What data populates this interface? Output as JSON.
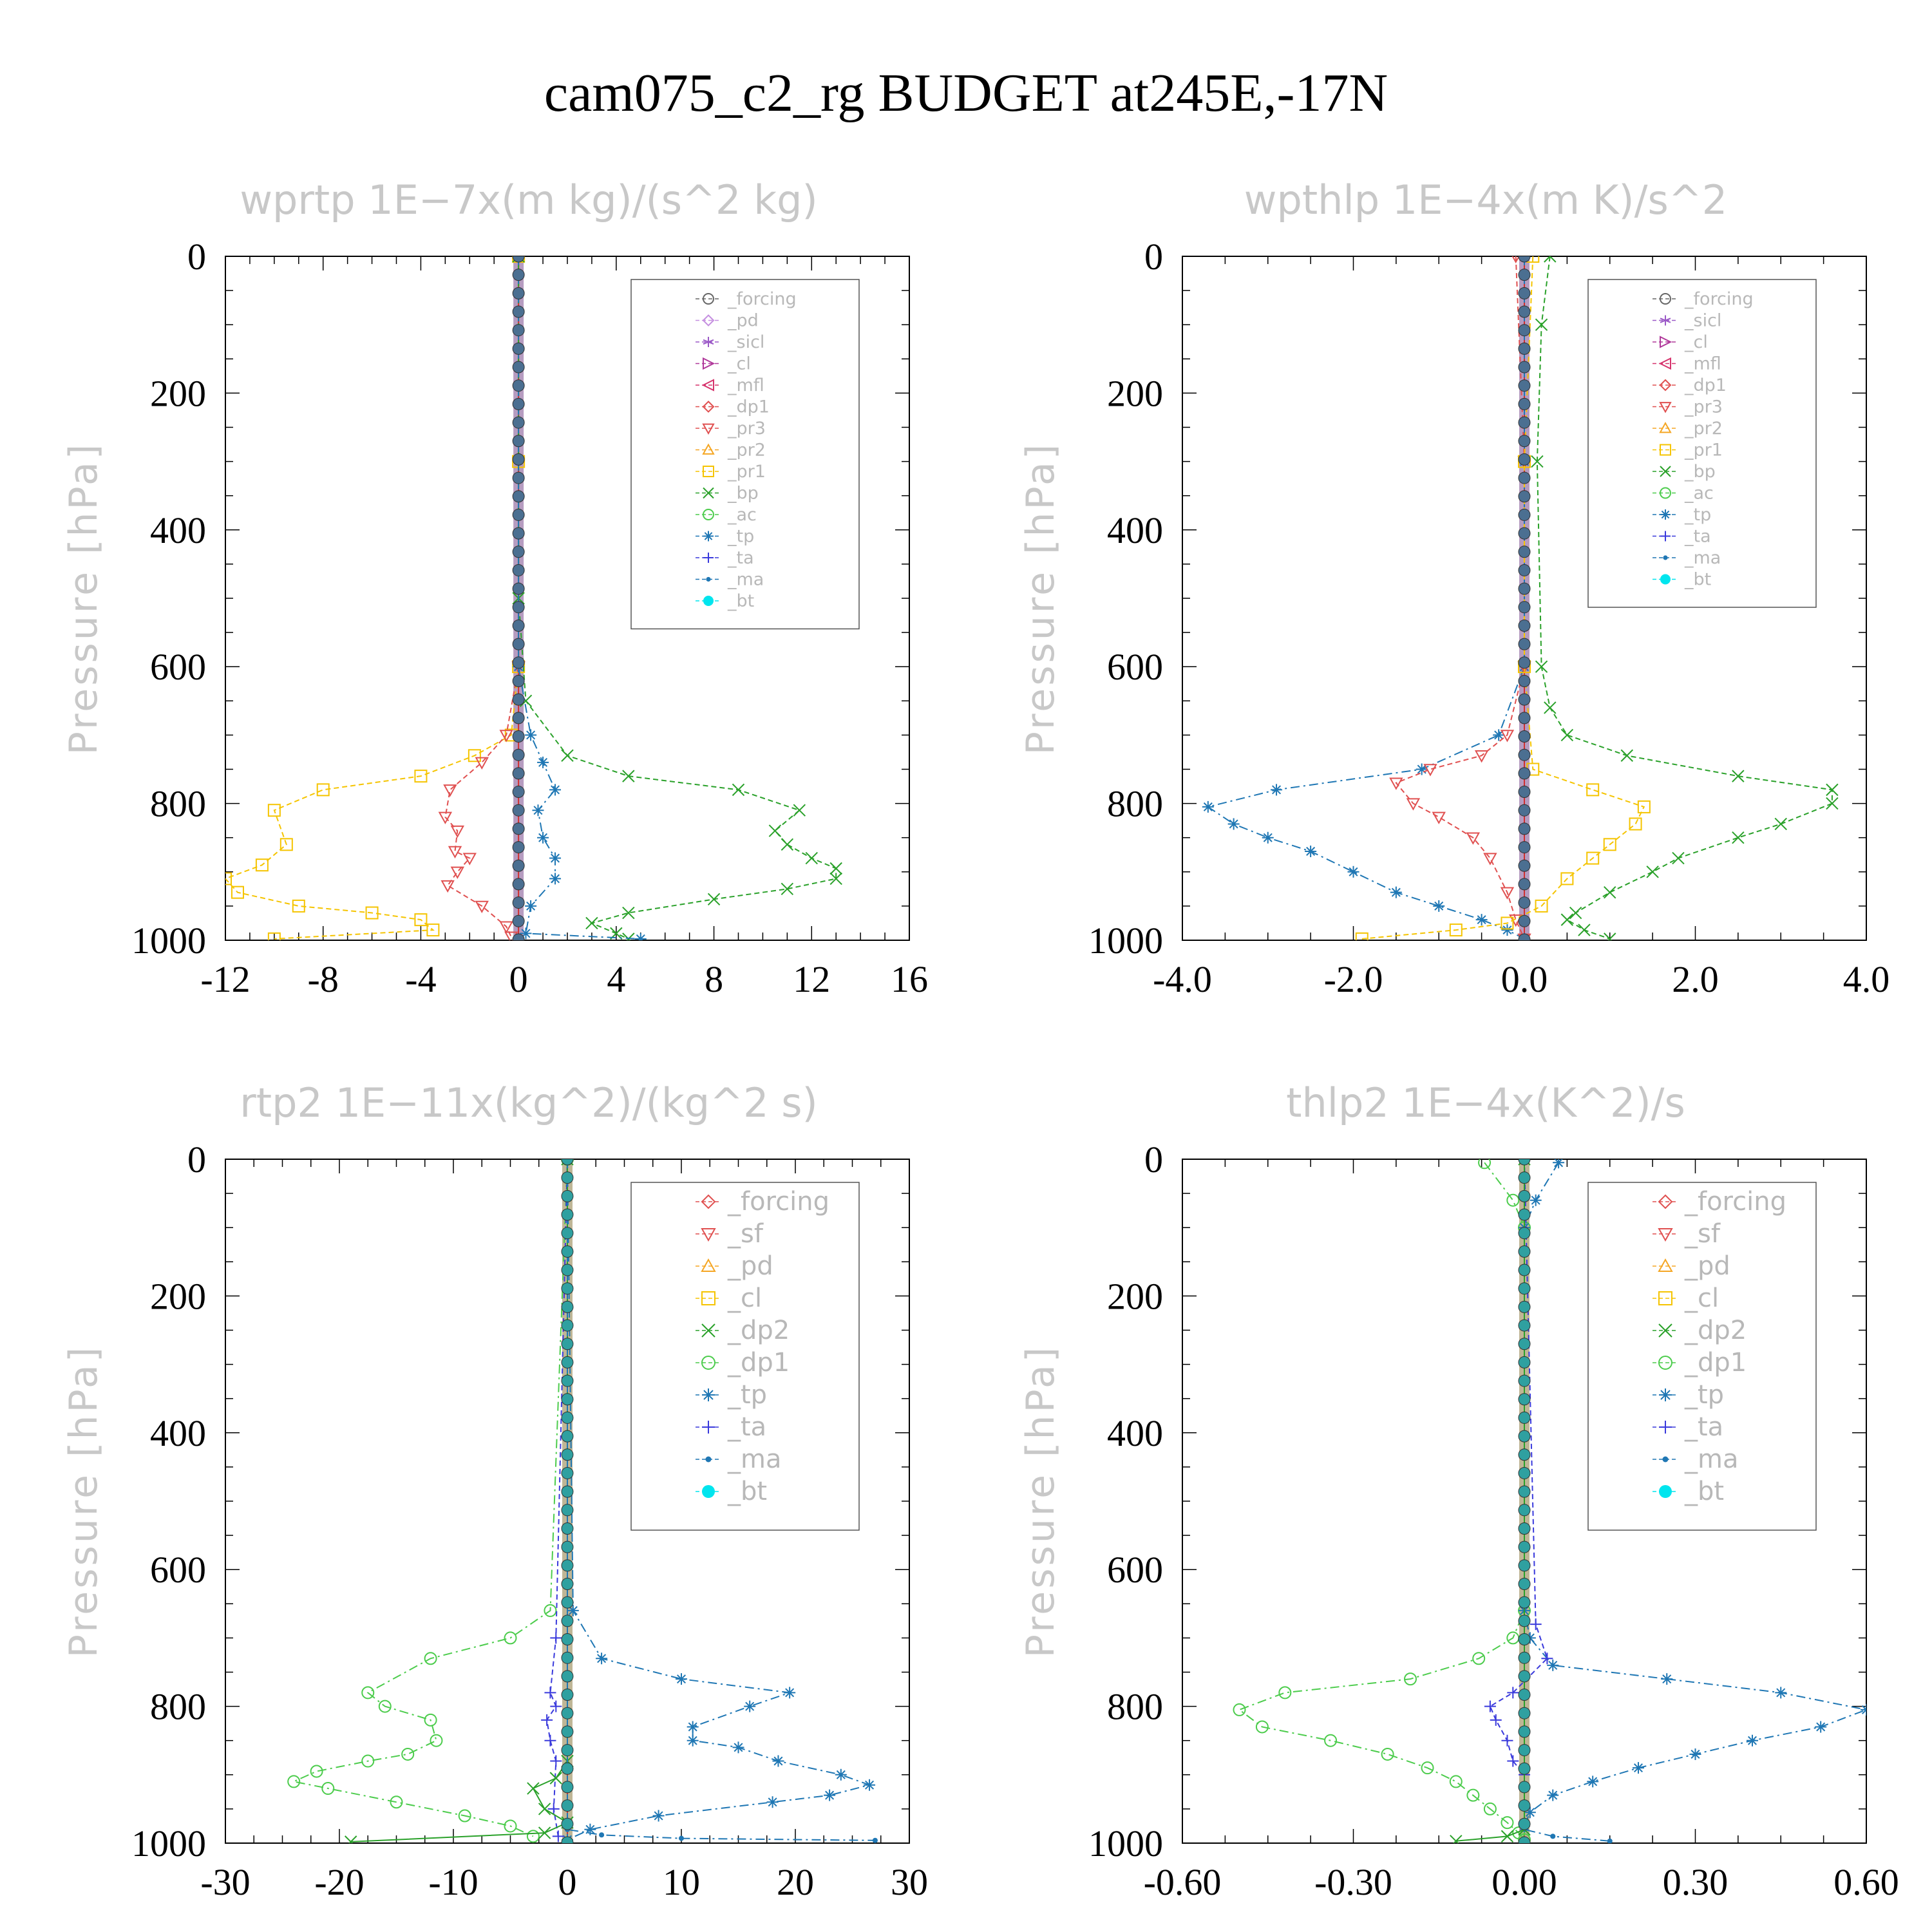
{
  "figure_title": "cam075_c2_rg  BUDGET at245E,-17N",
  "chart_data": [
    {
      "type": "line",
      "title": "wprtp   1E−7x(m kg)/(s^2 kg)",
      "ylabel": "Pressure [hPa]",
      "xlabel": "",
      "xlim": [
        -12,
        16
      ],
      "ylim": [
        1000,
        0
      ],
      "xticks": [
        -12,
        -8,
        -4,
        0,
        4,
        8,
        12,
        16
      ],
      "xtick_labels": [
        "-12",
        "-8",
        "-4",
        "0",
        "4",
        "8",
        "12",
        "16"
      ],
      "yticks": [
        0,
        200,
        400,
        600,
        800,
        1000
      ],
      "ytick_labels": [
        "0",
        "200",
        "400",
        "600",
        "800",
        "1000"
      ],
      "legend_position": "top-right",
      "legend": [
        "_forcing",
        "_pd",
        "_sicl",
        "_cl",
        "_mfl",
        "_dp1",
        "_pr3",
        "_pr2",
        "_pr1",
        "_bp",
        "_ac",
        "_tp",
        "_ta",
        "_ma",
        "_bt"
      ],
      "series": [
        {
          "name": "_pr1",
          "color": "#f5c400",
          "marker": "square",
          "dash": "8,5",
          "x": [
            0,
            0,
            0,
            -0.3,
            -1.8,
            -4,
            -8,
            -10,
            -9.5,
            -10.5,
            -12,
            -11.5,
            -9,
            -6,
            -4,
            -3.5,
            -10
          ],
          "y": [
            0,
            300,
            600,
            700,
            730,
            760,
            780,
            810,
            860,
            890,
            910,
            930,
            950,
            960,
            970,
            985,
            998
          ]
        },
        {
          "name": "_pr3",
          "color": "#e05050",
          "marker": "triangle-down",
          "dash": "8,5",
          "x": [
            0,
            0,
            -0.5,
            -1.5,
            -2.8,
            -3,
            -2.5,
            -2.6,
            -2,
            -2.5,
            -2.9,
            -1.5,
            -0.5,
            -0.3
          ],
          "y": [
            0,
            600,
            700,
            740,
            780,
            820,
            840,
            870,
            880,
            900,
            920,
            950,
            980,
            995
          ]
        },
        {
          "name": "_bp",
          "color": "#2aa12a",
          "marker": "x",
          "dash": "8,5",
          "x": [
            0,
            0,
            0.3,
            2,
            4.5,
            9,
            11.5,
            10.5,
            11,
            12,
            13,
            13,
            11,
            8,
            4.5,
            3,
            4,
            4.5
          ],
          "y": [
            0,
            500,
            650,
            730,
            760,
            780,
            810,
            840,
            860,
            880,
            895,
            910,
            925,
            940,
            960,
            975,
            990,
            998
          ]
        },
        {
          "name": "_tp",
          "color": "#1f77b4",
          "marker": "asterisk",
          "dash": "14,6,3,6",
          "x": [
            0,
            0,
            0.5,
            1,
            1.5,
            0.8,
            1,
            1.5,
            1.5,
            0.5,
            0.3,
            5
          ],
          "y": [
            0,
            600,
            700,
            740,
            780,
            810,
            850,
            880,
            910,
            950,
            990,
            998
          ]
        },
        {
          "name": "_bt",
          "color": "#4b6f91",
          "marker": "dot",
          "dash": "",
          "x": [
            0,
            0
          ],
          "y": [
            0,
            1000
          ]
        }
      ]
    },
    {
      "type": "line",
      "title": "wpthlp   1E−4x(m K)/s^2",
      "ylabel": "Pressure [hPa]",
      "xlabel": "",
      "xlim": [
        -4,
        4
      ],
      "ylim": [
        1000,
        0
      ],
      "xticks": [
        -4,
        -2,
        0,
        2,
        4
      ],
      "xtick_labels": [
        "-4.0",
        "-2.0",
        "0.0",
        "2.0",
        "4.0"
      ],
      "yticks": [
        0,
        200,
        400,
        600,
        800,
        1000
      ],
      "ytick_labels": [
        "0",
        "200",
        "400",
        "600",
        "800",
        "1000"
      ],
      "legend_position": "top-right",
      "legend": [
        "_forcing",
        "_sicl",
        "_cl",
        "_mfl",
        "_dp1",
        "_pr3",
        "_pr2",
        "_pr1",
        "_bp",
        "_ac",
        "_tp",
        "_ta",
        "_ma",
        "_bt"
      ],
      "series": [
        {
          "name": "_bp",
          "color": "#2aa12a",
          "marker": "x",
          "dash": "8,5",
          "x": [
            0.3,
            0.2,
            0.15,
            0.2,
            0.3,
            0.5,
            1.2,
            2.5,
            3.6,
            3.6,
            3,
            2.5,
            1.8,
            1.5,
            1,
            0.6,
            0.5,
            0.7,
            1
          ],
          "y": [
            0,
            100,
            300,
            600,
            660,
            700,
            730,
            760,
            780,
            800,
            830,
            850,
            880,
            900,
            930,
            960,
            970,
            985,
            998
          ]
        },
        {
          "name": "_tp",
          "color": "#1f77b4",
          "marker": "asterisk",
          "dash": "14,6,3,6",
          "x": [
            0,
            0,
            0,
            -0.3,
            -1.2,
            -2.9,
            -3.7,
            -3.4,
            -3,
            -2.5,
            -2,
            -1.5,
            -1,
            -0.5,
            -0.2,
            0
          ],
          "y": [
            0,
            300,
            600,
            700,
            750,
            780,
            805,
            830,
            850,
            870,
            900,
            930,
            950,
            970,
            985,
            998
          ]
        },
        {
          "name": "_pr3",
          "color": "#e05050",
          "marker": "triangle-down",
          "dash": "8,5",
          "x": [
            -0.1,
            0,
            0,
            -0.2,
            -0.5,
            -1.1,
            -1.5,
            -1.3,
            -1,
            -0.6,
            -0.4,
            -0.2,
            -0.1,
            0
          ],
          "y": [
            0,
            300,
            600,
            700,
            730,
            750,
            770,
            800,
            820,
            850,
            880,
            930,
            970,
            998
          ]
        },
        {
          "name": "_pr1",
          "color": "#f5c400",
          "marker": "square",
          "dash": "8,5",
          "x": [
            0.1,
            0,
            0,
            0.1,
            0.8,
            1.4,
            1.3,
            1,
            0.8,
            0.5,
            0.2,
            -0.2,
            -0.8,
            -1.9
          ],
          "y": [
            0,
            300,
            600,
            750,
            780,
            805,
            830,
            860,
            880,
            910,
            950,
            975,
            985,
            998
          ]
        },
        {
          "name": "_bt",
          "color": "#4b6f91",
          "marker": "dot",
          "dash": "",
          "x": [
            0,
            0
          ],
          "y": [
            0,
            1000
          ]
        }
      ]
    },
    {
      "type": "line",
      "title": "rtp2   1E−11x(kg^2)/(kg^2 s)",
      "ylabel": "Pressure [hPa]",
      "xlabel": "",
      "xlim": [
        -30,
        30
      ],
      "ylim": [
        1000,
        0
      ],
      "xticks": [
        -30,
        -20,
        -10,
        0,
        10,
        20,
        30
      ],
      "xtick_labels": [
        "-30",
        "-20",
        "-10",
        "0",
        "10",
        "20",
        "30"
      ],
      "yticks": [
        0,
        200,
        400,
        600,
        800,
        1000
      ],
      "ytick_labels": [
        "0",
        "200",
        "400",
        "600",
        "800",
        "1000"
      ],
      "legend_position": "top-right",
      "legend": [
        "_forcing",
        "_sf",
        "_pd",
        "_cl",
        "_dp2",
        "_dp1",
        "_tp",
        "_ta",
        "_ma",
        "_bt"
      ],
      "series": [
        {
          "name": "_dp1",
          "color": "#4ccc4c",
          "marker": "circle",
          "dash": "14,6,3,6",
          "x": [
            0,
            -1.5,
            -5,
            -12,
            -17.5,
            -16,
            -12,
            -11.5,
            -14,
            -17.5,
            -22,
            -24,
            -21,
            -15,
            -9,
            -5,
            -3
          ],
          "y": [
            0,
            660,
            700,
            730,
            780,
            800,
            820,
            850,
            870,
            880,
            895,
            910,
            920,
            940,
            960,
            975,
            990
          ]
        },
        {
          "name": "_tp",
          "color": "#1f77b4",
          "marker": "asterisk",
          "dash": "14,6,3,6",
          "x": [
            0,
            0.5,
            3,
            10,
            19.5,
            16,
            11,
            11,
            15,
            18.5,
            24,
            26.5,
            23,
            18,
            8,
            2,
            0
          ],
          "y": [
            0,
            660,
            730,
            760,
            780,
            800,
            830,
            850,
            860,
            880,
            900,
            915,
            930,
            940,
            960,
            980,
            995
          ]
        },
        {
          "name": "_ta",
          "color": "#3a3adc",
          "marker": "plus",
          "dash": "8,5",
          "x": [
            0,
            -1,
            -1.5,
            -1,
            -1.8,
            -1.5,
            -1,
            -1.2,
            -0.8
          ],
          "y": [
            0,
            700,
            780,
            800,
            820,
            850,
            880,
            950,
            990
          ]
        },
        {
          "name": "_dp2",
          "color": "#2aa12a",
          "marker": "x",
          "dash": "",
          "x": [
            0,
            0,
            -1,
            -3,
            -2,
            0,
            -2,
            -19
          ],
          "y": [
            0,
            880,
            905,
            920,
            950,
            970,
            985,
            998
          ]
        },
        {
          "name": "_ma",
          "color": "#1f77b4",
          "marker": "dot-small",
          "dash": "14,6,3,6",
          "x": [
            0,
            0,
            3,
            10,
            27
          ],
          "y": [
            0,
            980,
            988,
            993,
            996
          ]
        },
        {
          "name": "_bt",
          "color": "#2fa0a0",
          "marker": "dot",
          "dash": "",
          "x": [
            0,
            0
          ],
          "y": [
            0,
            1000
          ]
        }
      ]
    },
    {
      "type": "line",
      "title": "thlp2   1E−4x(K^2)/s",
      "ylabel": "Pressure [hPa]",
      "xlabel": "",
      "xlim": [
        -0.6,
        0.6
      ],
      "ylim": [
        1000,
        0
      ],
      "xticks": [
        -0.6,
        -0.3,
        0,
        0.3,
        0.6
      ],
      "xtick_labels": [
        "-0.60",
        "-0.30",
        "0.00",
        "0.30",
        "0.60"
      ],
      "yticks": [
        0,
        200,
        400,
        600,
        800,
        1000
      ],
      "ytick_labels": [
        "0",
        "200",
        "400",
        "600",
        "800",
        "1000"
      ],
      "legend_position": "top-right",
      "legend": [
        "_forcing",
        "_sf",
        "_pd",
        "_cl",
        "_dp2",
        "_dp1",
        "_tp",
        "_ta",
        "_ma",
        "_bt"
      ],
      "series": [
        {
          "name": "_dp1",
          "color": "#4ccc4c",
          "marker": "circle",
          "dash": "14,6,3,6",
          "x": [
            -0.07,
            -0.02,
            0,
            0,
            -0.02,
            -0.08,
            -0.2,
            -0.42,
            -0.5,
            -0.46,
            -0.34,
            -0.24,
            -0.17,
            -0.12,
            -0.09,
            -0.06,
            -0.03,
            -0.01,
            0
          ],
          "y": [
            5,
            60,
            100,
            660,
            700,
            730,
            760,
            780,
            805,
            830,
            850,
            870,
            890,
            910,
            930,
            950,
            970,
            985,
            995
          ]
        },
        {
          "name": "_tp",
          "color": "#1f77b4",
          "marker": "asterisk",
          "dash": "14,6,3,6",
          "x": [
            0.06,
            0.02,
            0,
            0,
            0.01,
            0.05,
            0.25,
            0.45,
            0.6,
            0.52,
            0.4,
            0.3,
            0.2,
            0.12,
            0.05,
            0.01,
            0
          ],
          "y": [
            5,
            60,
            100,
            660,
            700,
            740,
            760,
            780,
            805,
            830,
            850,
            870,
            890,
            910,
            930,
            955,
            975
          ]
        },
        {
          "name": "_ta",
          "color": "#3a3adc",
          "marker": "plus",
          "dash": "8,5",
          "x": [
            0,
            0.02,
            0.04,
            -0.02,
            -0.06,
            -0.05,
            -0.03,
            -0.02,
            0
          ],
          "y": [
            0,
            680,
            730,
            780,
            800,
            820,
            850,
            880,
            900
          ]
        },
        {
          "name": "_ma",
          "color": "#1f77b4",
          "marker": "dot-small",
          "dash": "14,6,3,6",
          "x": [
            0,
            0,
            0.05,
            0.15
          ],
          "y": [
            0,
            980,
            990,
            997
          ]
        },
        {
          "name": "_dp2",
          "color": "#2aa12a",
          "marker": "x",
          "dash": "",
          "x": [
            0,
            0,
            -0.03,
            -0.12
          ],
          "y": [
            0,
            980,
            990,
            997
          ]
        },
        {
          "name": "_bt",
          "color": "#2fa0a0",
          "marker": "dot",
          "dash": "",
          "x": [
            0,
            0
          ],
          "y": [
            0,
            1000
          ]
        }
      ]
    }
  ]
}
